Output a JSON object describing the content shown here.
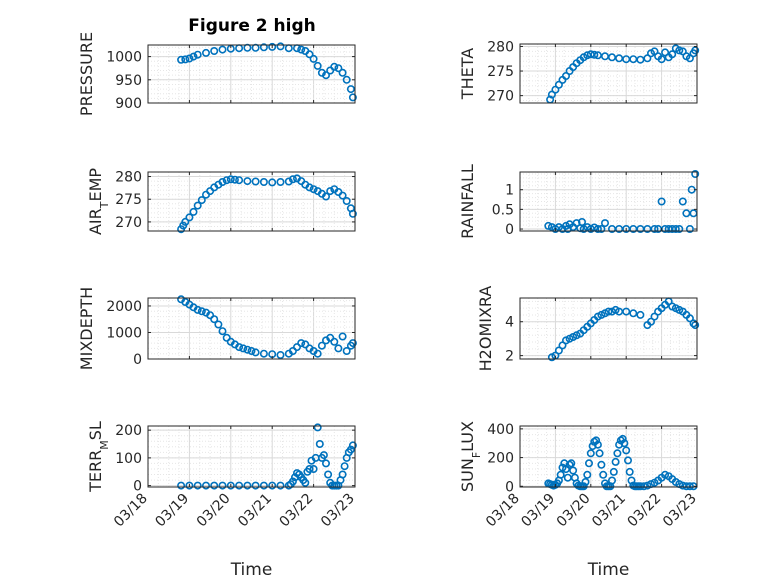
{
  "chart_data": [
    {
      "type": "scatter",
      "title": "Figure 2 high",
      "ylabel": "PRESSURE",
      "xlabel": "",
      "ylim": [
        900,
        1025
      ],
      "yticks": [
        900,
        950,
        1000
      ],
      "xlim": [
        0,
        5
      ],
      "xticklabels": [],
      "grid": "on",
      "marker": "circle-open",
      "color": "#0072BD",
      "series": [
        {
          "x": [
            0.8,
            0.9,
            1.0,
            1.1,
            1.2,
            1.4,
            1.6,
            1.8,
            2.0,
            2.2,
            2.4,
            2.6,
            2.8,
            3.0,
            3.2,
            3.4,
            3.6,
            3.7,
            3.8,
            3.9,
            4.0,
            4.1,
            4.2,
            4.3,
            4.4,
            4.5,
            4.6,
            4.7,
            4.8,
            4.9,
            4.95
          ],
          "y": [
            993,
            994,
            996,
            1000,
            1004,
            1008,
            1012,
            1015,
            1017,
            1018,
            1019,
            1019,
            1020,
            1021,
            1022,
            1018,
            1018,
            1015,
            1012,
            1005,
            995,
            980,
            965,
            960,
            970,
            978,
            975,
            965,
            950,
            930,
            912
          ]
        }
      ]
    },
    {
      "type": "scatter",
      "title": "",
      "ylabel": "THETA",
      "xlabel": "",
      "ylim": [
        268.5,
        280.5
      ],
      "yticks": [
        270,
        275,
        280
      ],
      "xlim": [
        0,
        5
      ],
      "xticklabels": [],
      "grid": "on",
      "marker": "circle-open",
      "color": "#0072BD",
      "series": [
        {
          "x": [
            0.85,
            0.9,
            1.0,
            1.1,
            1.2,
            1.3,
            1.4,
            1.5,
            1.6,
            1.7,
            1.8,
            1.9,
            2.0,
            2.1,
            2.2,
            2.4,
            2.6,
            2.8,
            3.0,
            3.2,
            3.4,
            3.6,
            3.7,
            3.8,
            3.9,
            4.0,
            4.1,
            4.2,
            4.3,
            4.4,
            4.5,
            4.6,
            4.7,
            4.8,
            4.9,
            4.95
          ],
          "y": [
            269.2,
            270.2,
            271.2,
            272.2,
            273.2,
            274.0,
            275.0,
            275.8,
            276.6,
            277.2,
            277.8,
            278.2,
            278.4,
            278.3,
            278.2,
            278.0,
            277.8,
            277.6,
            277.4,
            277.4,
            277.3,
            277.6,
            278.6,
            279.0,
            278.0,
            277.4,
            278.8,
            277.8,
            278.4,
            279.6,
            279.2,
            279.0,
            278.0,
            277.6,
            278.6,
            279.2
          ]
        }
      ]
    },
    {
      "type": "scatter",
      "title": "",
      "ylabel": "AIR_TEMP",
      "xlabel": "",
      "ylim": [
        268,
        281
      ],
      "yticks": [
        270,
        275,
        280
      ],
      "xlim": [
        0,
        5
      ],
      "xticklabels": [],
      "grid": "on",
      "marker": "circle-open",
      "color": "#0072BD",
      "series": [
        {
          "x": [
            0.8,
            0.85,
            0.9,
            1.0,
            1.1,
            1.2,
            1.3,
            1.4,
            1.5,
            1.6,
            1.7,
            1.8,
            1.9,
            2.0,
            2.1,
            2.2,
            2.4,
            2.6,
            2.8,
            3.0,
            3.2,
            3.4,
            3.5,
            3.6,
            3.7,
            3.8,
            3.9,
            4.0,
            4.1,
            4.2,
            4.3,
            4.4,
            4.5,
            4.6,
            4.7,
            4.8,
            4.9,
            4.95
          ],
          "y": [
            268.4,
            269.2,
            270.0,
            271.0,
            272.2,
            273.6,
            274.8,
            276.0,
            276.8,
            277.6,
            278.2,
            278.8,
            279.2,
            279.4,
            279.3,
            279.2,
            279.0,
            278.9,
            278.8,
            278.7,
            278.8,
            278.9,
            279.4,
            279.6,
            279.0,
            278.2,
            277.6,
            277.2,
            276.8,
            276.2,
            275.6,
            276.8,
            277.2,
            276.6,
            275.8,
            274.6,
            273.0,
            271.8
          ]
        }
      ]
    },
    {
      "type": "scatter",
      "title": "",
      "ylabel": "RAINFALL",
      "xlabel": "",
      "ylim": [
        -0.05,
        1.45
      ],
      "yticks": [
        0,
        0.5,
        1
      ],
      "xlim": [
        0,
        5
      ],
      "xticklabels": [],
      "grid": "on",
      "marker": "circle-open",
      "color": "#0072BD",
      "series": [
        {
          "x": [
            0.8,
            0.9,
            1.0,
            1.1,
            1.2,
            1.3,
            1.35,
            1.4,
            1.5,
            1.6,
            1.7,
            1.75,
            1.8,
            1.9,
            2.0,
            2.1,
            2.2,
            2.3,
            2.4,
            2.6,
            2.8,
            3.0,
            3.2,
            3.4,
            3.6,
            3.8,
            3.9,
            4.0,
            4.1,
            4.2,
            4.3,
            4.4,
            4.5,
            4.6,
            4.7,
            4.8,
            4.85,
            4.9,
            4.95
          ],
          "y": [
            0.08,
            0.05,
            0.0,
            0.05,
            0.0,
            0.08,
            0.0,
            0.12,
            0.05,
            0.15,
            0.02,
            0.18,
            0.0,
            0.05,
            0.0,
            0.04,
            0.0,
            0.0,
            0.15,
            0.0,
            0.0,
            0.0,
            0.0,
            0.0,
            0.0,
            0.0,
            0.0,
            0.7,
            0.0,
            0.0,
            0.0,
            0.0,
            0.0,
            0.7,
            0.4,
            0.0,
            1.0,
            0.4,
            1.4
          ]
        }
      ]
    },
    {
      "type": "scatter",
      "title": "",
      "ylabel": "MIXDEPTH",
      "xlabel": "",
      "ylim": [
        0,
        2300
      ],
      "yticks": [
        0,
        1000,
        2000
      ],
      "xlim": [
        0,
        5
      ],
      "xticklabels": [],
      "grid": "on",
      "marker": "circle-open",
      "color": "#0072BD",
      "series": [
        {
          "x": [
            0.8,
            0.9,
            1.0,
            1.1,
            1.2,
            1.3,
            1.4,
            1.5,
            1.6,
            1.7,
            1.8,
            1.9,
            2.0,
            2.1,
            2.2,
            2.3,
            2.4,
            2.5,
            2.6,
            2.8,
            3.0,
            3.2,
            3.4,
            3.5,
            3.6,
            3.7,
            3.8,
            3.9,
            4.0,
            4.1,
            4.2,
            4.3,
            4.4,
            4.5,
            4.6,
            4.7,
            4.8,
            4.9,
            4.95
          ],
          "y": [
            2250,
            2150,
            2050,
            1950,
            1850,
            1800,
            1750,
            1650,
            1500,
            1300,
            1050,
            800,
            650,
            550,
            450,
            400,
            350,
            300,
            250,
            200,
            180,
            150,
            200,
            300,
            450,
            600,
            550,
            400,
            300,
            200,
            500,
            700,
            800,
            650,
            400,
            850,
            300,
            500,
            600
          ]
        }
      ]
    },
    {
      "type": "scatter",
      "title": "",
      "ylabel": "H2OMIXRA",
      "xlabel": "",
      "ylim": [
        1.8,
        5.4
      ],
      "yticks": [
        2,
        4
      ],
      "xlim": [
        0,
        5
      ],
      "xticklabels": [],
      "grid": "on",
      "marker": "circle-open",
      "color": "#0072BD",
      "series": [
        {
          "x": [
            0.9,
            1.0,
            1.1,
            1.2,
            1.3,
            1.4,
            1.5,
            1.6,
            1.7,
            1.8,
            1.9,
            2.0,
            2.1,
            2.2,
            2.3,
            2.4,
            2.5,
            2.6,
            2.7,
            2.8,
            3.0,
            3.2,
            3.4,
            3.6,
            3.7,
            3.8,
            3.9,
            4.0,
            4.1,
            4.2,
            4.3,
            4.4,
            4.5,
            4.6,
            4.7,
            4.8,
            4.9,
            4.95
          ],
          "y": [
            1.9,
            2.0,
            2.3,
            2.6,
            2.9,
            3.0,
            3.1,
            3.2,
            3.3,
            3.5,
            3.7,
            3.9,
            4.1,
            4.3,
            4.4,
            4.5,
            4.6,
            4.6,
            4.7,
            4.6,
            4.6,
            4.5,
            4.4,
            3.8,
            4.0,
            4.3,
            4.6,
            4.8,
            5.0,
            5.2,
            4.9,
            4.8,
            4.7,
            4.6,
            4.4,
            4.2,
            3.9,
            3.8
          ]
        }
      ]
    },
    {
      "type": "scatter",
      "title": "",
      "ylabel": "TERR_MSL",
      "xlabel": "Time",
      "ylim": [
        -5,
        215
      ],
      "yticks": [
        0,
        100,
        200
      ],
      "xlim": [
        0,
        5
      ],
      "xticklabels": [
        "03/18",
        "03/19",
        "03/20",
        "03/21",
        "03/22",
        "03/23"
      ],
      "grid": "on",
      "marker": "circle-open",
      "color": "#0072BD",
      "series": [
        {
          "x": [
            0.8,
            1.0,
            1.2,
            1.4,
            1.6,
            1.8,
            2.0,
            2.2,
            2.4,
            2.6,
            2.8,
            3.0,
            3.2,
            3.4,
            3.45,
            3.5,
            3.55,
            3.6,
            3.65,
            3.7,
            3.75,
            3.8,
            3.85,
            3.9,
            3.95,
            4.0,
            4.05,
            4.1,
            4.15,
            4.2,
            4.25,
            4.3,
            4.35,
            4.4,
            4.45,
            4.5,
            4.55,
            4.6,
            4.65,
            4.7,
            4.75,
            4.8,
            4.85,
            4.9,
            4.95
          ],
          "y": [
            0,
            0,
            0,
            0,
            0,
            0,
            0,
            0,
            0,
            0,
            0,
            0,
            0,
            0,
            5,
            15,
            30,
            45,
            40,
            30,
            20,
            10,
            50,
            60,
            90,
            60,
            100,
            210,
            150,
            100,
            110,
            80,
            40,
            10,
            0,
            0,
            0,
            0,
            20,
            40,
            70,
            100,
            120,
            130,
            145
          ]
        }
      ]
    },
    {
      "type": "scatter",
      "title": "",
      "ylabel": "SUN_FLUX",
      "xlabel": "Time",
      "ylim": [
        -5,
        420
      ],
      "yticks": [
        0,
        200,
        400
      ],
      "xlim": [
        0,
        5
      ],
      "xticklabels": [
        "03/18",
        "03/19",
        "03/20",
        "03/21",
        "03/22",
        "03/23"
      ],
      "grid": "on",
      "marker": "circle-open",
      "color": "#0072BD",
      "series": [
        {
          "x": [
            0.8,
            0.85,
            0.9,
            0.95,
            1.0,
            1.05,
            1.1,
            1.15,
            1.2,
            1.25,
            1.3,
            1.35,
            1.4,
            1.45,
            1.5,
            1.55,
            1.6,
            1.65,
            1.7,
            1.75,
            1.8,
            1.85,
            1.9,
            1.95,
            2.0,
            2.05,
            2.1,
            2.15,
            2.2,
            2.25,
            2.3,
            2.35,
            2.4,
            2.45,
            2.5,
            2.55,
            2.6,
            2.65,
            2.7,
            2.75,
            2.8,
            2.85,
            2.9,
            2.95,
            3.0,
            3.05,
            3.1,
            3.15,
            3.2,
            3.25,
            3.3,
            3.35,
            3.4,
            3.5,
            3.6,
            3.7,
            3.8,
            3.9,
            4.0,
            4.1,
            4.2,
            4.3,
            4.4,
            4.5,
            4.6,
            4.7,
            4.8,
            4.9
          ],
          "y": [
            20,
            15,
            10,
            5,
            10,
            20,
            40,
            80,
            130,
            160,
            120,
            60,
            150,
            160,
            110,
            60,
            20,
            5,
            0,
            0,
            0,
            30,
            80,
            160,
            230,
            280,
            310,
            320,
            290,
            230,
            150,
            80,
            20,
            0,
            0,
            0,
            40,
            100,
            170,
            230,
            290,
            320,
            330,
            300,
            250,
            180,
            100,
            40,
            5,
            0,
            0,
            0,
            0,
            0,
            5,
            15,
            25,
            40,
            60,
            80,
            70,
            50,
            30,
            15,
            5,
            0,
            0,
            0
          ]
        }
      ]
    }
  ]
}
